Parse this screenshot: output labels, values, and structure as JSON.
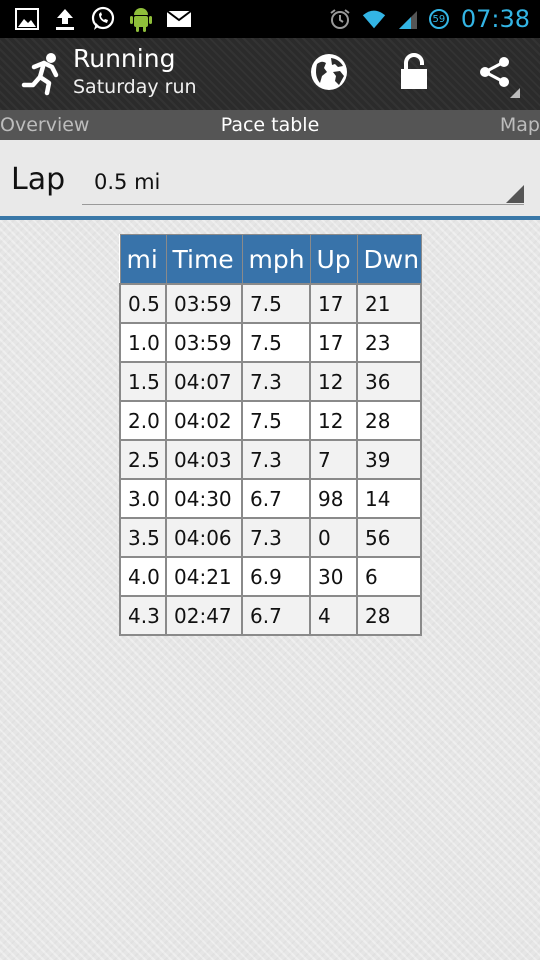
{
  "status_bar": {
    "time": "07:38",
    "battery_level": "59",
    "left_icons": [
      "gallery-icon",
      "upload-icon",
      "whatsapp-icon",
      "android-icon",
      "email-icon"
    ],
    "right_icons": [
      "alarm-icon",
      "wifi-icon",
      "signal-icon",
      "battery-icon"
    ]
  },
  "action_bar": {
    "title": "Running",
    "subtitle": "Saturday run",
    "actions": [
      "globe-icon",
      "lock-icon",
      "share-icon"
    ]
  },
  "tabs": {
    "left": "Overview",
    "center": "Pace table",
    "right": "Map"
  },
  "lap": {
    "label": "Lap",
    "value": "0.5 mi"
  },
  "table": {
    "headers": [
      "mi",
      "Time",
      "mph",
      "Up",
      "Dwn"
    ],
    "rows": [
      [
        "0.5",
        "03:59",
        "7.5",
        "17",
        "21"
      ],
      [
        "1.0",
        "03:59",
        "7.5",
        "17",
        "23"
      ],
      [
        "1.5",
        "04:07",
        "7.3",
        "12",
        "36"
      ],
      [
        "2.0",
        "04:02",
        "7.5",
        "12",
        "28"
      ],
      [
        "2.5",
        "04:03",
        "7.3",
        "7",
        "39"
      ],
      [
        "3.0",
        "04:30",
        "6.7",
        "98",
        "14"
      ],
      [
        "3.5",
        "04:06",
        "7.3",
        "0",
        "56"
      ],
      [
        "4.0",
        "04:21",
        "6.9",
        "30",
        "6"
      ],
      [
        "4.3",
        "02:47",
        "6.7",
        "4",
        "28"
      ]
    ]
  },
  "colors": {
    "accent_blue": "#3873aa",
    "status_time": "#33b5e5",
    "action_bar": "#2b2b2b",
    "tab_strip": "#555555"
  }
}
